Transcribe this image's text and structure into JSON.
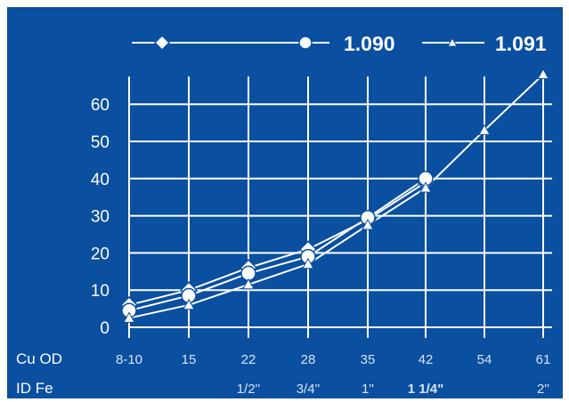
{
  "chart_data": {
    "type": "line",
    "categories": [
      "8-10",
      "15",
      "22",
      "28",
      "35",
      "42",
      "54",
      "61"
    ],
    "second_row": [
      "",
      "",
      "1/2''",
      "3/4''",
      "1''",
      "1 1/4\"",
      "",
      "2''"
    ],
    "row_labels": [
      "Cu OD",
      "ID Fe"
    ],
    "yticks": [
      0,
      10,
      20,
      30,
      40,
      50,
      60
    ],
    "ylim": [
      0,
      70
    ],
    "series": [
      {
        "name": "",
        "marker": "diamond",
        "values": [
          6,
          10,
          16,
          21,
          29,
          39,
          null,
          null
        ]
      },
      {
        "name": "1.090",
        "marker": "circle",
        "values": [
          4.5,
          8.5,
          14.5,
          19,
          29.5,
          40,
          null,
          null
        ]
      },
      {
        "name": "1.091",
        "marker": "triangle",
        "values": [
          2.5,
          6,
          11.5,
          17,
          27.5,
          37.5,
          53,
          68
        ]
      }
    ],
    "grid": true,
    "legend": "top",
    "colors": {
      "background": "#0a4fa0",
      "foreground": "#ffffff"
    }
  }
}
